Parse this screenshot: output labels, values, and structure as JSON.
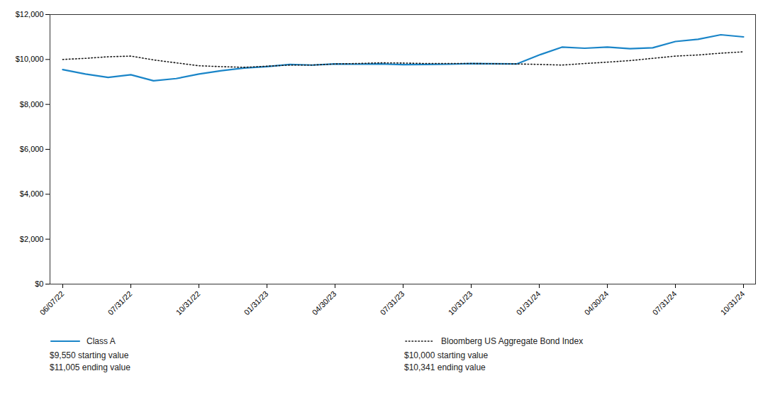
{
  "chart_data": {
    "type": "line",
    "categories": [
      "06/07/22",
      null,
      null,
      "07/31/22",
      null,
      null,
      "10/31/22",
      null,
      null,
      "01/31/23",
      null,
      null,
      "04/30/23",
      null,
      null,
      "07/31/23",
      null,
      null,
      "10/31/23",
      null,
      null,
      "01/31/24",
      null,
      null,
      "04/30/24",
      null,
      null,
      "07/31/24",
      null,
      null,
      "10/31/24"
    ],
    "series": [
      {
        "name": "Class A",
        "color": "#1a85c8",
        "line_style": "solid",
        "values": [
          9550,
          9350,
          9200,
          9320,
          9050,
          9150,
          9350,
          9500,
          9620,
          9680,
          9780,
          9750,
          9800,
          9790,
          9800,
          9770,
          9780,
          9790,
          9820,
          9810,
          9800,
          10200,
          10550,
          10500,
          10550,
          10480,
          10520,
          10800,
          10900,
          11100,
          11005
        ]
      },
      {
        "name": "Bloomberg US Aggregate Bond Index",
        "color": "#1a1a1a",
        "line_style": "dotted",
        "values": [
          10000,
          10050,
          10120,
          10150,
          9980,
          9850,
          9720,
          9680,
          9650,
          9700,
          9750,
          9750,
          9800,
          9820,
          9850,
          9840,
          9820,
          9820,
          9820,
          9810,
          9800,
          9780,
          9750,
          9820,
          9880,
          9950,
          10050,
          10150,
          10200,
          10280,
          10341
        ]
      }
    ],
    "annotations": [
      {
        "series": "Class A",
        "text": "$9,550 starting value"
      },
      {
        "series": "Class A",
        "text": "$11,005 ending value"
      },
      {
        "series": "Bloomberg US Aggregate Bond Index",
        "text": "$10,000 starting value"
      },
      {
        "series": "Bloomberg US Aggregate Bond Index",
        "text": "$10,341 ending value"
      }
    ],
    "ylim": [
      0,
      12000
    ],
    "yticks": [
      {
        "value": 0,
        "label": "$0"
      },
      {
        "value": 2000,
        "label": "$2,000"
      },
      {
        "value": 4000,
        "label": "$4,000"
      },
      {
        "value": 6000,
        "label": "$6,000"
      },
      {
        "value": 8000,
        "label": "$8,000"
      },
      {
        "value": 10000,
        "label": "$10,000"
      },
      {
        "value": 12000,
        "label": "$12,000"
      }
    ],
    "grid": false,
    "legend": "bottom"
  }
}
